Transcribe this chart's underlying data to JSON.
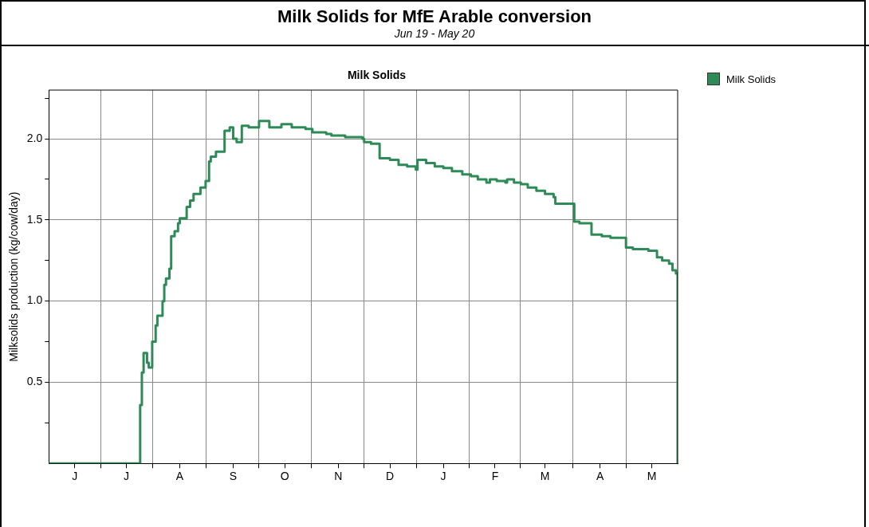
{
  "chart_data": {
    "type": "step",
    "title": "Milk Solids for MfE Arable conversion",
    "subtitle": "Jun 19 - May 20",
    "annotations": [
      "Milk Solids"
    ],
    "ylabel": "Milksolids production (kg/cow/day)",
    "categories": [
      null,
      null,
      null,
      null,
      null,
      null,
      null,
      null,
      null,
      null,
      null,
      null,
      null,
      null,
      null,
      "J",
      null,
      null,
      null,
      null,
      null,
      null,
      null,
      null,
      null,
      null,
      null,
      null,
      null,
      null,
      null,
      null,
      null,
      null,
      null,
      null,
      null,
      null,
      null,
      null,
      null,
      null,
      null,
      null,
      null,
      "J",
      null,
      null,
      null,
      null,
      null,
      null,
      null,
      null,
      null,
      null,
      null,
      null,
      null,
      null,
      null,
      null,
      null,
      null,
      null,
      null,
      null,
      null,
      null,
      null,
      null,
      null,
      null,
      null,
      null,
      null,
      "A",
      null,
      null,
      null,
      null,
      null,
      null,
      null,
      null,
      null,
      null,
      null,
      null,
      null,
      null,
      null,
      null,
      null,
      null,
      null,
      null,
      null,
      null,
      null,
      null,
      null,
      null,
      null,
      null,
      null,
      null,
      "S",
      null,
      null,
      null,
      null,
      null,
      null,
      null,
      null,
      null,
      null,
      null,
      null,
      null,
      null,
      null,
      null,
      null,
      null,
      null,
      null,
      null,
      null,
      null,
      null,
      null,
      null,
      null,
      null,
      null,
      "O",
      null,
      null,
      null,
      null,
      null,
      null,
      null,
      null,
      null,
      null,
      null,
      null,
      null,
      null,
      null,
      null,
      null,
      null,
      null,
      null,
      null,
      null,
      null,
      null,
      null,
      null,
      null,
      null,
      null,
      null,
      "N",
      null,
      null,
      null,
      null,
      null,
      null,
      null,
      null,
      null,
      null,
      null,
      null,
      null,
      null,
      null,
      null,
      null,
      null,
      null,
      null,
      null,
      null,
      null,
      null,
      null,
      null,
      null,
      null,
      null,
      "D",
      null,
      null,
      null,
      null,
      null,
      null,
      null,
      null,
      null,
      null,
      null,
      null,
      null,
      null,
      null,
      null,
      null,
      null,
      null,
      null,
      null,
      null,
      null,
      null,
      null,
      null,
      null,
      null,
      null,
      null,
      "J",
      null,
      null,
      null,
      null,
      null,
      null,
      null,
      null,
      null,
      null,
      null,
      null,
      null,
      null,
      null,
      null,
      null,
      null,
      null,
      null,
      null,
      null,
      null,
      null,
      null,
      null,
      null,
      null,
      null,
      "F",
      null,
      null,
      null,
      null,
      null,
      null,
      null,
      null,
      null,
      null,
      null,
      null,
      null,
      null,
      null,
      null,
      null,
      null,
      null,
      null,
      null,
      null,
      null,
      null,
      null,
      null,
      null,
      null,
      "M",
      null,
      null,
      null,
      null,
      null,
      null,
      null,
      null,
      null,
      null,
      null,
      null,
      null,
      null,
      null,
      null,
      null,
      null,
      null,
      null,
      null,
      null,
      null,
      null,
      null,
      null,
      null,
      null,
      null,
      null,
      null,
      "A",
      null,
      null,
      null,
      null,
      null,
      null,
      null,
      null,
      null,
      null,
      null,
      null,
      null,
      null,
      null,
      null,
      null,
      null,
      null,
      null,
      null,
      null,
      null,
      null,
      null,
      null,
      null,
      null,
      null,
      "M",
      null,
      null,
      null,
      null,
      null,
      null,
      null,
      null,
      null,
      null,
      null,
      null,
      null,
      null,
      null
    ],
    "series": [
      {
        "name": "Milk Solids",
        "color": "#2e8b57",
        "values": [
          0,
          0,
          0,
          0,
          0,
          0,
          0,
          0,
          0,
          0,
          0,
          0,
          0,
          0,
          0,
          0,
          0,
          0,
          0,
          0,
          0,
          0,
          0,
          0,
          0,
          0,
          0,
          0,
          0,
          0,
          0,
          0,
          0,
          0,
          0,
          0,
          0,
          0,
          0,
          0,
          0,
          0,
          0,
          0,
          0,
          0,
          0,
          0,
          0,
          0,
          0,
          0,
          0,
          0.36,
          0.56,
          0.68,
          0.68,
          0.62,
          0.59,
          0.59,
          0.75,
          0.75,
          0.85,
          0.91,
          0.91,
          0.91,
          1.0,
          1.1,
          1.14,
          1.14,
          1.2,
          1.4,
          1.4,
          1.43,
          1.43,
          1.48,
          1.51,
          1.51,
          1.51,
          1.51,
          1.58,
          1.58,
          1.62,
          1.62,
          1.66,
          1.66,
          1.66,
          1.66,
          1.7,
          1.7,
          1.7,
          1.74,
          1.74,
          1.86,
          1.89,
          1.89,
          1.89,
          1.92,
          1.92,
          1.92,
          1.92,
          1.92,
          2.05,
          2.05,
          2.05,
          2.07,
          2.07,
          2.0,
          2.0,
          1.98,
          1.98,
          1.98,
          2.08,
          2.08,
          2.08,
          2.08,
          2.07,
          2.07,
          2.07,
          2.07,
          2.07,
          2.07,
          2.11,
          2.11,
          2.11,
          2.11,
          2.11,
          2.11,
          2.07,
          2.07,
          2.07,
          2.07,
          2.07,
          2.07,
          2.07,
          2.09,
          2.09,
          2.09,
          2.09,
          2.09,
          2.09,
          2.07,
          2.07,
          2.07,
          2.07,
          2.07,
          2.07,
          2.07,
          2.07,
          2.06,
          2.06,
          2.06,
          2.06,
          2.04,
          2.04,
          2.04,
          2.04,
          2.04,
          2.04,
          2.04,
          2.04,
          2.03,
          2.03,
          2.03,
          2.02,
          2.02,
          2.02,
          2.02,
          2.02,
          2.02,
          2.02,
          2.02,
          2.01,
          2.01,
          2.01,
          2.01,
          2.01,
          2.01,
          2.01,
          2.01,
          2.01,
          2.01,
          2.0,
          1.98,
          1.98,
          1.98,
          1.98,
          1.97,
          1.97,
          1.97,
          1.97,
          1.97,
          1.88,
          1.88,
          1.88,
          1.88,
          1.88,
          1.88,
          1.87,
          1.87,
          1.87,
          1.87,
          1.87,
          1.84,
          1.84,
          1.84,
          1.84,
          1.84,
          1.83,
          1.83,
          1.83,
          1.83,
          1.83,
          1.81,
          1.87,
          1.87,
          1.87,
          1.87,
          1.87,
          1.85,
          1.85,
          1.85,
          1.85,
          1.85,
          1.83,
          1.83,
          1.83,
          1.83,
          1.83,
          1.82,
          1.82,
          1.82,
          1.82,
          1.82,
          1.8,
          1.8,
          1.8,
          1.8,
          1.8,
          1.8,
          1.78,
          1.78,
          1.78,
          1.78,
          1.78,
          1.77,
          1.77,
          1.77,
          1.77,
          1.75,
          1.75,
          1.75,
          1.75,
          1.75,
          1.73,
          1.73,
          1.75,
          1.75,
          1.75,
          1.75,
          1.74,
          1.74,
          1.74,
          1.74,
          1.74,
          1.73,
          1.75,
          1.75,
          1.75,
          1.75,
          1.73,
          1.73,
          1.73,
          1.73,
          1.72,
          1.72,
          1.72,
          1.72,
          1.7,
          1.7,
          1.7,
          1.7,
          1.7,
          1.68,
          1.68,
          1.68,
          1.68,
          1.68,
          1.66,
          1.66,
          1.66,
          1.66,
          1.66,
          1.64,
          1.6,
          1.6,
          1.6,
          1.6,
          1.6,
          1.6,
          1.6,
          1.6,
          1.6,
          1.6,
          1.6,
          1.49,
          1.49,
          1.49,
          1.48,
          1.48,
          1.48,
          1.48,
          1.48,
          1.48,
          1.48,
          1.41,
          1.41,
          1.41,
          1.41,
          1.41,
          1.41,
          1.4,
          1.4,
          1.4,
          1.4,
          1.4,
          1.39,
          1.39,
          1.39,
          1.39,
          1.39,
          1.39,
          1.39,
          1.39,
          1.39,
          1.33,
          1.33,
          1.33,
          1.33,
          1.32,
          1.32,
          1.32,
          1.32,
          1.32,
          1.32,
          1.32,
          1.32,
          1.32,
          1.31,
          1.31,
          1.31,
          1.31,
          1.31,
          1.27,
          1.27,
          1.27,
          1.25,
          1.25,
          1.25,
          1.25,
          1.23,
          1.23,
          1.19,
          1.19,
          1.17,
          0
        ]
      }
    ],
    "ylim": [
      0,
      2.3
    ],
    "yticks": [
      {
        "value": 0.25,
        "label": null
      },
      0.5,
      {
        "value": 0.75,
        "label": null
      },
      {
        "value": 1,
        "label": "1.0"
      },
      {
        "value": 1.25,
        "label": null
      },
      1.5,
      {
        "value": 1.75,
        "label": null
      },
      {
        "value": 2,
        "label": "2.0"
      },
      {
        "value": 2.25,
        "label": null
      }
    ],
    "grid": true,
    "legend": "top right",
    "marker": "none"
  }
}
